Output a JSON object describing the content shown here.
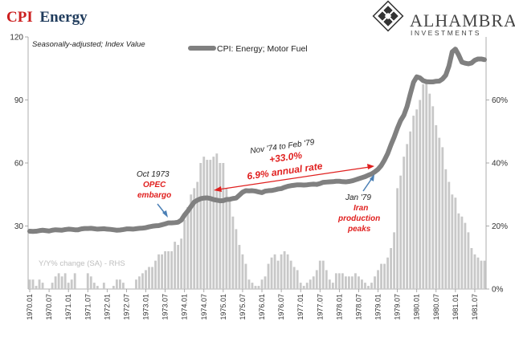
{
  "header": {
    "title_cpi": "CPI",
    "title_rest": "Energy",
    "subtitle": "Seasonally-adjusted; Index Value"
  },
  "brand": {
    "name": "ALHAMBRA",
    "sub": "INVESTMENTS"
  },
  "colors": {
    "title_red": "#cc1f1f",
    "title_dark": "#1f3b5c",
    "line": "#808080",
    "bars": "#c8c8c8",
    "annotation_red": "#e0201f",
    "arrow_blue": "#4a7fb5"
  },
  "annotations": {
    "oct73_line1": "Oct 1973",
    "oct73_line2": "OPEC",
    "oct73_line3": "embargo",
    "span_line1": "Nov '74 to Feb '79",
    "span_line2": "+33.0%",
    "span_line3": "6.9% annual rate",
    "jan79_line1": "Jan '79",
    "jan79_line2": "Iran",
    "jan79_line3": "production",
    "jan79_line4": "peaks",
    "rhs_note": "Y/Y% change (SA) - RHS"
  },
  "chart_data": {
    "type": "line",
    "title": "CPI Energy",
    "subtitle": "Seasonally-adjusted; Index Value",
    "x_tick_labels": [
      "1970.01",
      "1970.07",
      "1971.01",
      "1971.07",
      "1972.01",
      "1972.07",
      "1973.01",
      "1973.07",
      "1974.01",
      "1974.07",
      "1975.01",
      "1975.07",
      "1976.01",
      "1976.07",
      "1977.01",
      "1977.07",
      "1978.01",
      "1978.07",
      "1979.01",
      "1979.07",
      "1980.01",
      "1980.07",
      "1981.01",
      "1981.07"
    ],
    "y_left_ticks": [
      0,
      30,
      60,
      90,
      120
    ],
    "y_left_labels": [
      "30",
      "60",
      "90",
      "120"
    ],
    "y_left_range": [
      0,
      120
    ],
    "y_right_ticks": [
      "0%",
      "20%",
      "40%",
      "60%"
    ],
    "y_right_range": [
      0,
      0.8
    ],
    "legend": {
      "label": "CPI: Energy; Motor Fuel",
      "position": "top-center"
    },
    "x_start": "1970.01",
    "series": [
      {
        "name": "CPI: Energy; Motor Fuel",
        "axis": "left",
        "style": "line",
        "values": [
          27.5,
          27.4,
          27.5,
          27.8,
          28.0,
          27.8,
          27.6,
          28.0,
          28.2,
          28.1,
          28.0,
          28.3,
          28.5,
          28.4,
          28.2,
          28.2,
          28.6,
          28.8,
          28.8,
          28.9,
          28.7,
          28.5,
          28.6,
          28.7,
          28.5,
          28.4,
          28.2,
          28.0,
          28.1,
          28.3,
          28.6,
          28.6,
          28.5,
          28.7,
          28.9,
          29.0,
          29.2,
          29.6,
          29.9,
          30.1,
          30.2,
          30.6,
          31.0,
          31.5,
          31.5,
          31.6,
          31.8,
          32.8,
          35.2,
          37.1,
          39.3,
          41.4,
          42.3,
          43.0,
          43.3,
          43.4,
          43.1,
          42.6,
          42.3,
          42.0,
          42.1,
          42.6,
          42.7,
          43.1,
          43.3,
          44.7,
          46.1,
          46.8,
          46.7,
          46.8,
          46.6,
          46.2,
          45.9,
          46.6,
          46.8,
          46.9,
          47.2,
          47.6,
          47.8,
          48.4,
          48.9,
          49.2,
          49.4,
          49.6,
          49.6,
          49.5,
          49.6,
          49.8,
          49.9,
          49.8,
          50.2,
          50.8,
          50.9,
          51.0,
          51.1,
          51.3,
          51.3,
          51.1,
          51.0,
          51.2,
          51.5,
          52.0,
          52.5,
          53.0,
          53.5,
          54.2,
          54.8,
          55.8,
          57.0,
          58.8,
          61.4,
          64.5,
          68.6,
          72.3,
          76.5,
          80.2,
          82.7,
          86.9,
          92.8,
          98.4,
          101.0,
          100.5,
          99.2,
          98.7,
          98.6,
          98.6,
          98.9,
          99.0,
          100.0,
          101.8,
          106.2,
          112.9,
          114.2,
          111.4,
          108.0,
          107.5,
          107.2,
          107.6,
          108.9,
          109.5,
          109.5,
          109.2
        ]
      },
      {
        "name": "Y/Y% change (SA) - RHS",
        "axis": "right",
        "style": "bar",
        "values": [
          0.03,
          0.03,
          0.01,
          0.03,
          0.02,
          0.0,
          0.0,
          0.02,
          0.04,
          0.05,
          0.04,
          0.05,
          0.02,
          0.03,
          0.05,
          0.0,
          0.0,
          0.0,
          0.05,
          0.04,
          0.02,
          0.01,
          0.0,
          0.02,
          0.0,
          0.0,
          0.01,
          0.03,
          0.03,
          0.02,
          0.0,
          0.0,
          0.0,
          0.03,
          0.04,
          0.05,
          0.06,
          0.07,
          0.07,
          0.09,
          0.11,
          0.11,
          0.12,
          0.12,
          0.12,
          0.15,
          0.14,
          0.16,
          0.22,
          0.26,
          0.3,
          0.32,
          0.34,
          0.4,
          0.42,
          0.41,
          0.41,
          0.42,
          0.43,
          0.4,
          0.4,
          0.32,
          0.28,
          0.23,
          0.19,
          0.14,
          0.11,
          0.08,
          0.03,
          0.02,
          0.01,
          0.01,
          0.03,
          0.04,
          0.08,
          0.1,
          0.11,
          0.09,
          0.11,
          0.12,
          0.11,
          0.09,
          0.07,
          0.06,
          0.02,
          0.01,
          0.02,
          0.03,
          0.04,
          0.06,
          0.09,
          0.09,
          0.06,
          0.03,
          0.02,
          0.05,
          0.05,
          0.05,
          0.04,
          0.04,
          0.04,
          0.05,
          0.04,
          0.03,
          0.02,
          0.01,
          0.02,
          0.04,
          0.06,
          0.08,
          0.08,
          0.1,
          0.13,
          0.18,
          0.32,
          0.36,
          0.42,
          0.46,
          0.5,
          0.55,
          0.57,
          0.6,
          0.65,
          0.66,
          0.62,
          0.58,
          0.52,
          0.48,
          0.45,
          0.38,
          0.34,
          0.3,
          0.29,
          0.24,
          0.23,
          0.21,
          0.18,
          0.13,
          0.11,
          0.1,
          0.09,
          0.09
        ]
      }
    ]
  }
}
